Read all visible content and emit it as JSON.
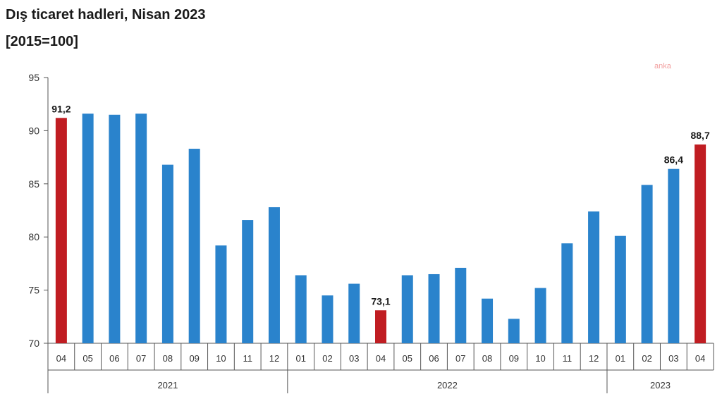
{
  "chart_data": {
    "type": "bar",
    "title": "Dış ticaret hadleri, Nisan 2023",
    "subtitle": "[2015=100]",
    "ylim": [
      70,
      95
    ],
    "yticks": [
      70,
      75,
      80,
      85,
      90,
      95
    ],
    "categories": [
      "04",
      "05",
      "06",
      "07",
      "08",
      "09",
      "10",
      "11",
      "12",
      "01",
      "02",
      "03",
      "04",
      "05",
      "06",
      "07",
      "08",
      "09",
      "10",
      "11",
      "12",
      "01",
      "02",
      "03",
      "04"
    ],
    "values": [
      91.2,
      91.6,
      91.5,
      91.6,
      86.8,
      88.3,
      79.2,
      81.6,
      82.8,
      76.4,
      74.5,
      75.6,
      73.1,
      76.4,
      76.5,
      77.1,
      74.2,
      72.3,
      75.2,
      79.4,
      82.4,
      80.1,
      84.9,
      86.4,
      88.7
    ],
    "highlight": [
      true,
      false,
      false,
      false,
      false,
      false,
      false,
      false,
      false,
      false,
      false,
      false,
      true,
      false,
      false,
      false,
      false,
      false,
      false,
      false,
      false,
      false,
      false,
      false,
      true
    ],
    "data_labels": [
      "91,2",
      "",
      "",
      "",
      "",
      "",
      "",
      "",
      "",
      "",
      "",
      "",
      "73,1",
      "",
      "",
      "",
      "",
      "",
      "",
      "",
      "",
      "",
      "",
      "86,4",
      "88,7"
    ],
    "year_groups": [
      {
        "label": "2021",
        "start": 0,
        "end": 8
      },
      {
        "label": "2022",
        "start": 9,
        "end": 20
      },
      {
        "label": "2023",
        "start": 21,
        "end": 24
      }
    ],
    "colors": {
      "bar": "#2a83cc",
      "highlight": "#c01d22",
      "axis": "#555555",
      "text": "#333333"
    },
    "grid": false,
    "legend": "none"
  },
  "watermark": "anka"
}
